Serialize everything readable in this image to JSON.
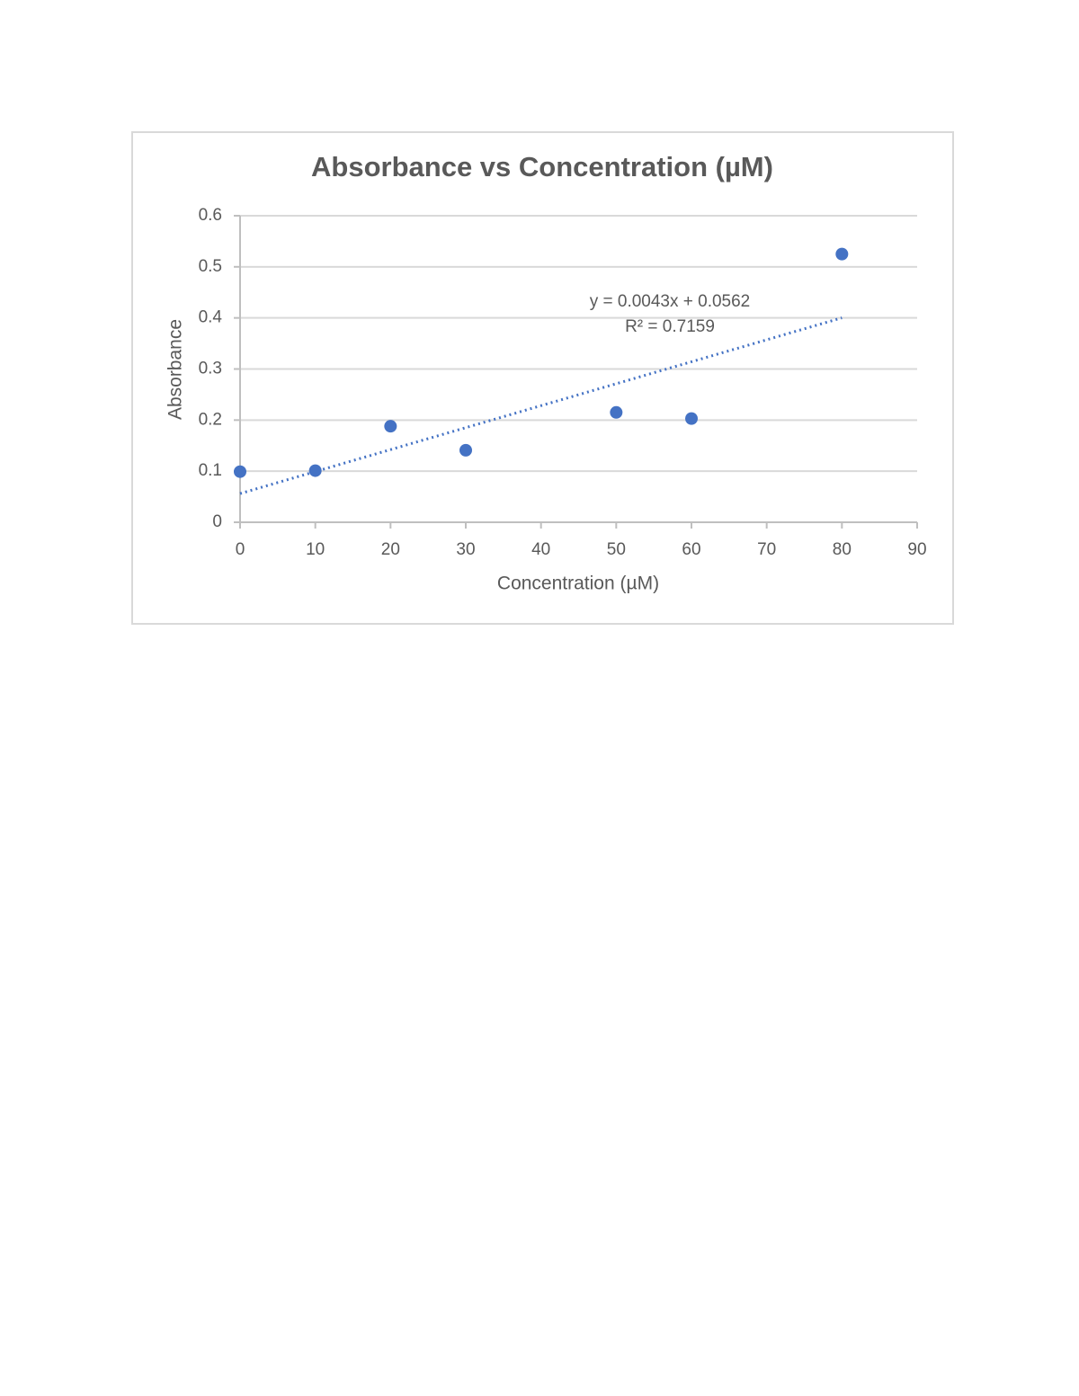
{
  "chart_data": {
    "type": "scatter",
    "title": "Absorbance vs Concentration (µM)",
    "x_label": "Concentration (µM)",
    "y_label": "Absorbance",
    "x": [
      0,
      10,
      20,
      30,
      50,
      60,
      80
    ],
    "values": [
      0.099,
      0.101,
      0.188,
      0.141,
      0.215,
      0.203,
      0.525
    ],
    "color": "#4472c4",
    "xlim": [
      0,
      90
    ],
    "xticks": [
      0,
      10,
      20,
      30,
      40,
      50,
      60,
      70,
      80,
      90
    ],
    "ylim": [
      0,
      0.6
    ],
    "yticks": [
      0,
      0.1,
      0.2,
      0.3,
      0.4,
      0.5,
      0.6
    ],
    "grid": true,
    "trendline": {
      "equation": "y = 0.0043x + 0.0562",
      "r_squared": "R² = 0.7159",
      "slope": 0.0043,
      "intercept": 0.0562
    }
  }
}
